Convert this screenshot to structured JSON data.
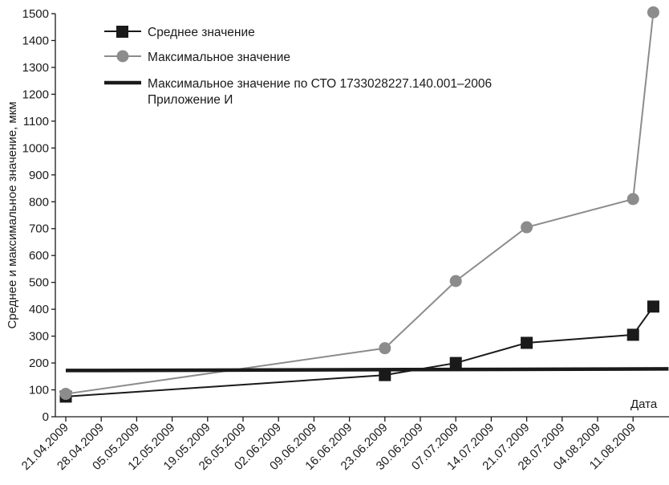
{
  "chart_data": {
    "type": "line",
    "title": "",
    "xlabel": "Дата",
    "ylabel": "Среднее и максимальное значение, мкм",
    "ylim": [
      0,
      1500
    ],
    "yticks": [
      0,
      100,
      200,
      300,
      400,
      500,
      600,
      700,
      800,
      900,
      1000,
      1100,
      1200,
      1300,
      1400,
      1500
    ],
    "xticks": [
      "21.04.2009",
      "28.04.2009",
      "05.05.2009",
      "12.05.2009",
      "19.05.2009",
      "26.05.2009",
      "02.06.2009",
      "09.06.2009",
      "16.06.2009",
      "23.06.2009",
      "30.06.2009",
      "07.07.2009",
      "14.07.2009",
      "21.07.2009",
      "28.07.2009",
      "04.08.2009",
      "11.08.2009"
    ],
    "xlim": [
      "2009-04-21",
      "2009-08-18"
    ],
    "grid": false,
    "legend_position": "top-left",
    "series": [
      {
        "name": "Среднее значение",
        "color": "#1a1a1a",
        "marker": "square",
        "points": [
          {
            "x": "2009-04-21",
            "y": 75
          },
          {
            "x": "2009-06-23",
            "y": 155
          },
          {
            "x": "2009-07-07",
            "y": 200
          },
          {
            "x": "2009-07-21",
            "y": 275
          },
          {
            "x": "2009-08-11",
            "y": 305
          },
          {
            "x": "2009-08-15",
            "y": 410
          }
        ]
      },
      {
        "name": "Максимальное значение",
        "color": "#8c8c8c",
        "marker": "circle",
        "points": [
          {
            "x": "2009-04-21",
            "y": 85
          },
          {
            "x": "2009-06-23",
            "y": 255
          },
          {
            "x": "2009-07-07",
            "y": 505
          },
          {
            "x": "2009-07-21",
            "y": 705
          },
          {
            "x": "2009-08-11",
            "y": 810
          },
          {
            "x": "2009-08-15",
            "y": 1505
          }
        ]
      },
      {
        "name": "Максимальное значение по СТО 1733028227.140.001–2006",
        "name_line2": "Приложение И",
        "color": "#1a1a1a",
        "marker": "none",
        "points": [
          {
            "x": "2009-04-21",
            "y": 172
          },
          {
            "x": "2009-08-18",
            "y": 178
          }
        ]
      }
    ]
  }
}
